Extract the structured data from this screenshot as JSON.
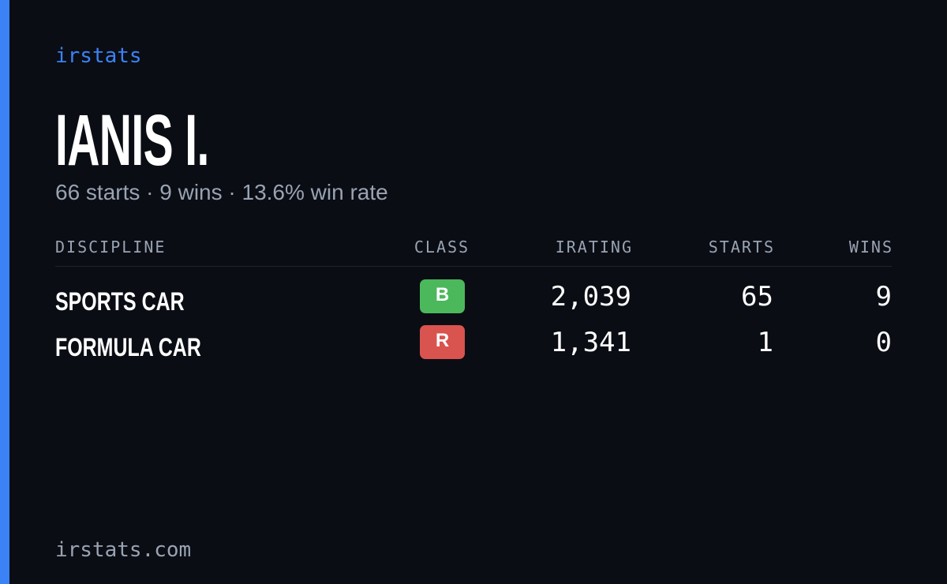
{
  "brand": "irstats",
  "header": {
    "name": "IANIS I.",
    "summary": "66 starts · 9 wins · 13.6% win rate"
  },
  "table": {
    "columns": [
      "DISCIPLINE",
      "CLASS",
      "IRATING",
      "STARTS",
      "WINS"
    ],
    "rows": [
      {
        "discipline": "SPORTS CAR",
        "class": "B",
        "class_color": "#4cb85c",
        "irating": "2,039",
        "starts": "65",
        "wins": "9"
      },
      {
        "discipline": "FORMULA CAR",
        "class": "R",
        "class_color": "#d9534f",
        "irating": "1,341",
        "starts": "1",
        "wins": "0"
      }
    ]
  },
  "footer": "irstats.com"
}
